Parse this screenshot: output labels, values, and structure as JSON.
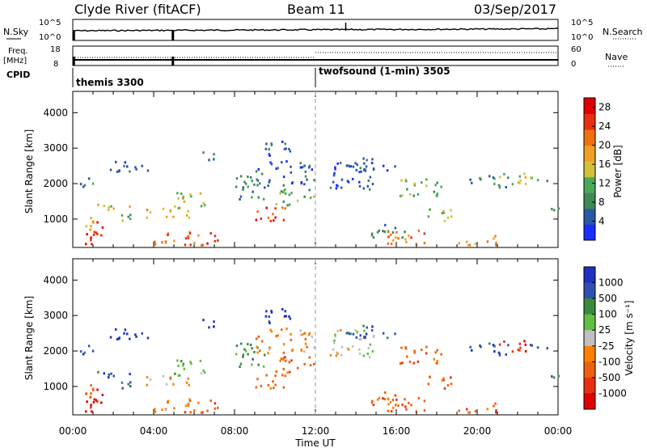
{
  "header": {
    "title": "Clyde River (fitACF)",
    "beam": "Beam 11",
    "date": "03/Sep/2017"
  },
  "noise_panel": {
    "left_label": "N.Sky",
    "right_label": "N.Search",
    "left_ticks": [
      "10^5",
      "10^0"
    ],
    "right_ticks": [
      "10^5",
      "10^0"
    ]
  },
  "freq_panel": {
    "left_label_1": "Freq.",
    "left_label_2": "[MHz]",
    "left_ticks": [
      "18",
      "8"
    ],
    "right_label": "Nave",
    "right_ticks": [
      "60",
      "0"
    ],
    "cpid_label": "CPID"
  },
  "cpid": {
    "segments": [
      {
        "name": "themis 3300"
      },
      {
        "name": "twofsound (1-min) 3505"
      }
    ]
  },
  "colors": {
    "power": [
      "#1a2cff",
      "#2a58a8",
      "#3e8a56",
      "#4aa85a",
      "#d4c03a",
      "#f0a020",
      "#f07010",
      "#e83010",
      "#e00000"
    ],
    "velocity": [
      "#2030c0",
      "#3050b0",
      "#3a8a40",
      "#60c040",
      "#c0c0c0",
      "#ff8000",
      "#ee6010",
      "#e83010",
      "#e00000"
    ]
  },
  "chart_data": [
    {
      "type": "heatmap",
      "panel": "power",
      "ylabel": "Slant Range [km]",
      "yticks": [
        1000,
        2000,
        3000,
        4000
      ],
      "ylim": [
        200,
        4600
      ],
      "xlabel": "",
      "colorbar_label": "Power [dB]",
      "colorbar_ticks": [
        "4",
        "8",
        "12",
        "16",
        "20",
        "24",
        "28"
      ],
      "colorbar_range": [
        0,
        30
      ]
    },
    {
      "type": "heatmap",
      "panel": "velocity",
      "ylabel": "Slant Range [km]",
      "yticks": [
        1000,
        2000,
        3000,
        4000
      ],
      "ylim": [
        200,
        4600
      ],
      "xlabel": "Time UT",
      "xticks": [
        "00:00",
        "04:00",
        "08:00",
        "12:00",
        "16:00",
        "20:00",
        "00:00"
      ],
      "xlim_hours": [
        0,
        24
      ],
      "colorbar_label": "Velocity [m s⁻¹]",
      "colorbar_ticks": [
        "1000",
        "500",
        "100",
        "25",
        "-25",
        "-100",
        "-500",
        "-1000"
      ]
    }
  ]
}
